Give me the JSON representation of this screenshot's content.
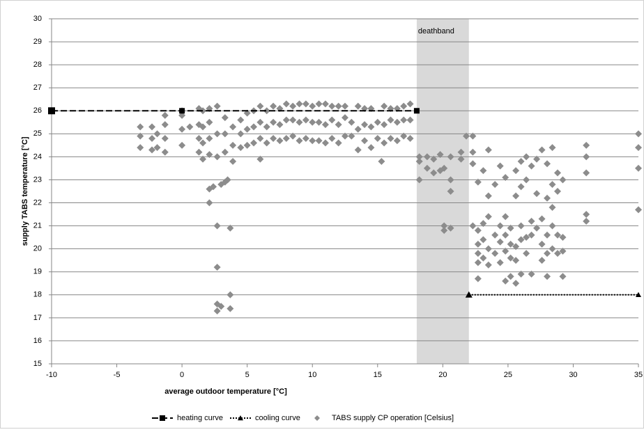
{
  "chart_data": {
    "type": "scatter",
    "x_label": "average outdoor temperature [°C]",
    "y_label": "supply TABS temperature [°C]",
    "xlim": [
      -10,
      35
    ],
    "xticks": [
      -10,
      -5,
      0,
      5,
      10,
      15,
      20,
      25,
      30,
      35
    ],
    "ylim": [
      15,
      30
    ],
    "yticks": [
      15,
      16,
      17,
      18,
      19,
      20,
      21,
      22,
      23,
      24,
      25,
      26,
      27,
      28,
      29,
      30
    ],
    "grid": true,
    "legend": "bottom",
    "bands": [
      {
        "label": "deathband",
        "x": [
          18,
          22
        ],
        "color": "#d9d9d9"
      }
    ],
    "series": [
      {
        "name": "heating curve",
        "type": "line",
        "color": "#000000",
        "dash": "dashed",
        "marker": "square",
        "x": [
          -10,
          0,
          18
        ],
        "values": [
          26,
          26,
          26
        ]
      },
      {
        "name": "cooling curve",
        "type": "line",
        "color": "#000000",
        "dash": "dotted",
        "marker": "triangle",
        "x": [
          22,
          35
        ],
        "values": [
          18,
          18
        ]
      },
      {
        "name": "TABS supply CP operation [Celsius]",
        "type": "scatter",
        "color": "#8c8c8c",
        "marker": "diamond",
        "x": [
          -3.2,
          -3.2,
          -3.2,
          -2.3,
          -2.3,
          -2.3,
          -1.9,
          -1.9,
          -1.3,
          -1.3,
          -1.3,
          -1.3,
          0,
          0,
          0,
          0,
          0.6,
          1.3,
          1.3,
          1.3,
          1.3,
          1.6,
          1.6,
          1.6,
          1.6,
          2.1,
          2.1,
          2.1,
          2.1,
          2.1,
          2.1,
          2.4,
          2.7,
          2.7,
          2.7,
          2.7,
          2.7,
          2.7,
          2.7,
          3.0,
          3.0,
          3.3,
          3.3,
          3.3,
          3.3,
          3.5,
          3.7,
          3.7,
          3.7,
          3.9,
          3.9,
          3.9,
          4.5,
          4.5,
          4.5,
          5.0,
          5.0,
          5.0,
          5.5,
          5.5,
          5.5,
          6.0,
          6.0,
          6.0,
          6.0,
          6.5,
          6.5,
          6.5,
          7.0,
          7.0,
          7.0,
          7.5,
          7.5,
          7.5,
          8.0,
          8.0,
          8.0,
          8.5,
          8.5,
          8.5,
          9.0,
          9.0,
          9.0,
          9.5,
          9.5,
          9.5,
          10.0,
          10.0,
          10.0,
          10.5,
          10.5,
          10.5,
          11.0,
          11.0,
          11.0,
          11.5,
          11.5,
          11.5,
          12.0,
          12.0,
          12.0,
          12.5,
          12.5,
          12.5,
          13.0,
          13.0,
          13.5,
          13.5,
          13.5,
          14.0,
          14.0,
          14.0,
          14.5,
          14.5,
          14.5,
          15.0,
          15.0,
          15.3,
          15.5,
          15.5,
          15.5,
          16.0,
          16.0,
          16.0,
          16.5,
          16.5,
          16.5,
          17.0,
          17.0,
          17.0,
          17.5,
          17.5,
          17.5,
          18.2,
          18.2,
          18.2,
          18.8,
          18.8,
          19.3,
          19.3,
          19.8,
          19.8,
          20.1,
          20.1,
          20.1,
          20.6,
          20.6,
          20.6,
          20.6,
          21.4,
          21.4,
          21.8,
          22.3,
          22.3,
          22.3,
          22.3,
          22.7,
          22.7,
          22.7,
          22.7,
          22.7,
          22.7,
          23.1,
          23.1,
          23.1,
          23.1,
          23.5,
          23.5,
          23.5,
          23.5,
          23.5,
          24.0,
          24.0,
          24.0,
          24.4,
          24.4,
          24.4,
          24.4,
          24.8,
          24.8,
          24.8,
          24.8,
          24.8,
          25.2,
          25.2,
          25.2,
          25.2,
          25.6,
          25.6,
          25.6,
          25.6,
          25.6,
          26.0,
          26.0,
          26.0,
          26.0,
          26.0,
          26.4,
          26.4,
          26.4,
          26.4,
          26.8,
          26.8,
          26.8,
          26.8,
          27.2,
          27.2,
          27.2,
          27.6,
          27.6,
          27.6,
          27.6,
          28.0,
          28.0,
          28.0,
          28.0,
          28.0,
          28.4,
          28.4,
          28.4,
          28.4,
          28.4,
          28.8,
          28.8,
          28.8,
          28.8,
          29.2,
          29.2,
          29.2,
          29.2,
          31.0,
          31.0,
          31.0,
          31.0,
          31.0,
          35.0,
          35.0,
          35.0,
          35.0
        ],
        "values": [
          24.4,
          24.9,
          25.3,
          24.3,
          24.8,
          25.3,
          24.4,
          25.0,
          24.2,
          24.8,
          25.4,
          25.8,
          24.5,
          25.2,
          25.8,
          26.0,
          25.3,
          24.2,
          24.8,
          25.4,
          26.1,
          23.9,
          24.6,
          25.3,
          26.0,
          24.1,
          24.8,
          25.5,
          26.1,
          22.6,
          22.0,
          22.7,
          24.0,
          25.0,
          26.2,
          21.0,
          19.2,
          17.6,
          17.3,
          22.8,
          17.5,
          24.2,
          25.0,
          25.7,
          22.9,
          23.0,
          20.9,
          18.0,
          17.4,
          23.8,
          24.5,
          25.3,
          24.4,
          25.0,
          25.6,
          24.5,
          25.2,
          25.9,
          24.6,
          25.3,
          26.0,
          23.9,
          24.8,
          25.5,
          26.2,
          24.6,
          25.3,
          26.0,
          24.8,
          25.5,
          26.2,
          24.7,
          25.4,
          26.1,
          24.8,
          25.6,
          26.3,
          24.9,
          25.6,
          26.2,
          24.7,
          25.5,
          26.3,
          24.8,
          25.6,
          26.3,
          24.7,
          25.5,
          26.2,
          24.7,
          25.5,
          26.3,
          24.6,
          25.4,
          26.3,
          24.8,
          25.6,
          26.2,
          24.6,
          25.4,
          26.2,
          24.9,
          25.7,
          26.2,
          24.9,
          25.5,
          24.3,
          25.2,
          26.2,
          24.7,
          25.4,
          26.1,
          24.4,
          25.3,
          26.1,
          24.8,
          25.5,
          23.8,
          24.6,
          25.4,
          26.2,
          24.8,
          25.6,
          26.1,
          24.7,
          25.5,
          26.1,
          24.9,
          25.6,
          26.2,
          24.8,
          25.6,
          26.3,
          23.8,
          24.0,
          23.0,
          23.5,
          24.0,
          23.3,
          23.9,
          24.1,
          23.4,
          21.0,
          20.8,
          23.5,
          24.0,
          23.0,
          22.5,
          20.9,
          23.9,
          24.2,
          24.9,
          24.9,
          24.2,
          23.7,
          21.0,
          20.2,
          19.8,
          19.4,
          20.8,
          22.9,
          18.7,
          20.4,
          19.6,
          21.1,
          23.4,
          20.0,
          19.3,
          21.4,
          24.3,
          22.3,
          19.8,
          20.6,
          22.8,
          20.3,
          19.4,
          23.6,
          21.0,
          19.9,
          20.6,
          18.6,
          23.1,
          21.4,
          19.6,
          20.2,
          20.9,
          18.8,
          19.5,
          20.1,
          23.4,
          22.3,
          18.5,
          20.4,
          21.0,
          23.8,
          22.7,
          18.9,
          19.8,
          20.5,
          24.0,
          23.0,
          20.6,
          21.2,
          23.6,
          18.9,
          20.9,
          23.9,
          22.4,
          20.2,
          21.3,
          24.3,
          19.5,
          19.8,
          20.6,
          23.7,
          22.2,
          18.8,
          20.0,
          21.0,
          24.4,
          22.8,
          21.8,
          19.8,
          20.6,
          23.3,
          22.5,
          19.9,
          20.5,
          23.0,
          18.8,
          21.2,
          21.5,
          23.3,
          24.0,
          24.5,
          21.7,
          23.5,
          24.4,
          25.0
        ]
      }
    ]
  }
}
